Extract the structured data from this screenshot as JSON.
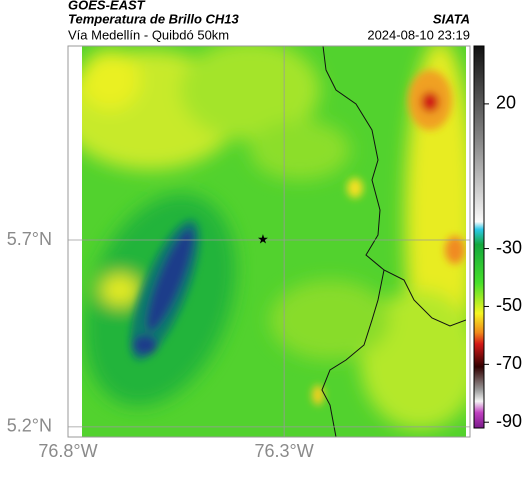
{
  "header": {
    "title": "GOES-EAST",
    "subtitle": "Temperatura de Brillo CH13",
    "route": "Vía Medellín - Quibdó 50km",
    "source": "SIATA",
    "timestamp": "2024-08-10 23:19"
  },
  "map": {
    "xlim": [
      -76.8,
      -75.87
    ],
    "ylim": [
      5.173,
      6.219
    ],
    "xticks": [
      {
        "value": -76.8,
        "label": "76.8°W"
      },
      {
        "value": -76.3,
        "label": "76.3°W"
      }
    ],
    "yticks": [
      {
        "value": 5.7,
        "label": "5.7°N"
      },
      {
        "value": 5.2,
        "label": "5.2°N"
      }
    ]
  },
  "colorbar": {
    "lim": [
      -92,
      40
    ],
    "ticks": [
      20,
      -30,
      -50,
      -70,
      -90
    ]
  }
}
